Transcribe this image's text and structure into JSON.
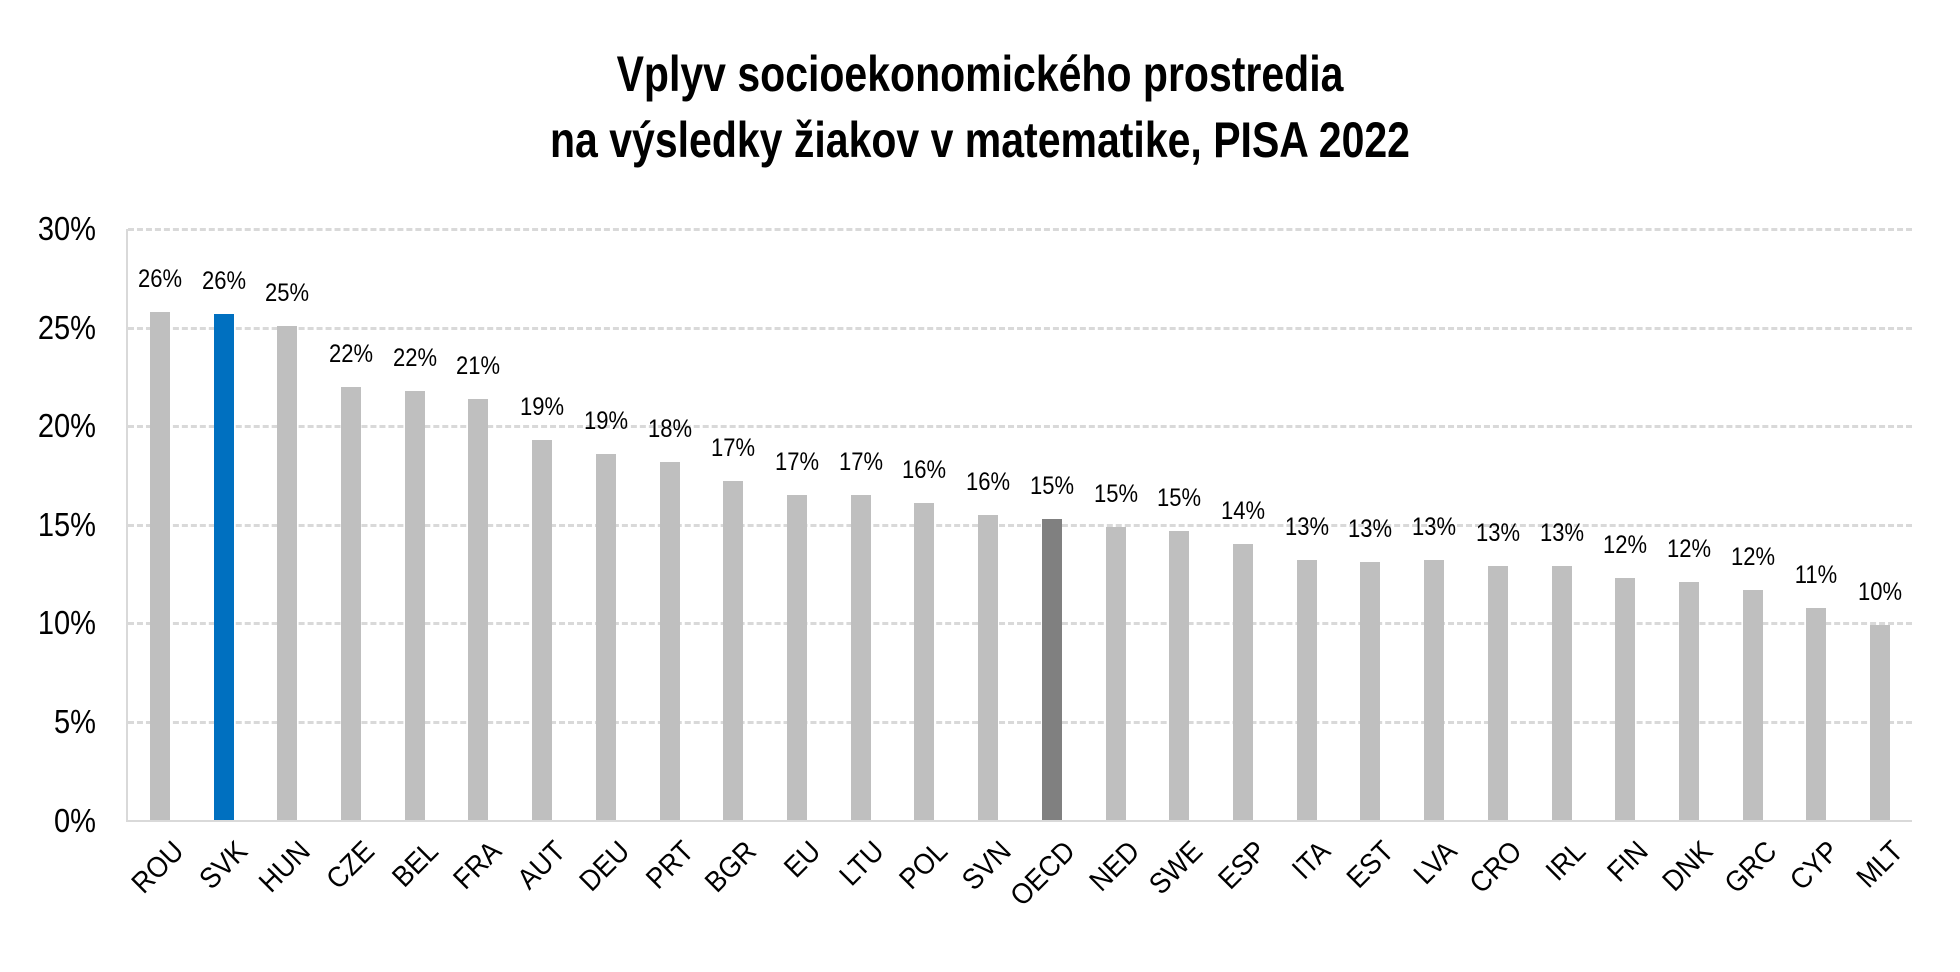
{
  "title": {
    "line1": "Vplyv socioekonomického prostredia",
    "line2": "na výsledky žiakov v matematike, PISA 2022"
  },
  "colors": {
    "default_bar": "#bfbfbf",
    "highlight_svk": "#0070c0",
    "highlight_oecd": "#808080",
    "gridline": "#d9d9d9",
    "axis": "#d9d9d9"
  },
  "y_axis": {
    "ticks": [
      "0%",
      "5%",
      "10%",
      "15%",
      "20%",
      "25%",
      "30%"
    ]
  },
  "chart_data": {
    "type": "bar",
    "title": "Vplyv socioekonomického prostredia na výsledky žiakov v matematike, PISA 2022",
    "xlabel": "",
    "ylabel": "",
    "ylim": [
      0,
      30
    ],
    "y_tick_format": "percent",
    "grid": "horizontal dashed",
    "legend": "none",
    "categories": [
      "ROU",
      "SVK",
      "HUN",
      "CZE",
      "BEL",
      "FRA",
      "AUT",
      "DEU",
      "PRT",
      "BGR",
      "EU",
      "LTU",
      "POL",
      "SVN",
      "OECD",
      "NED",
      "SWE",
      "ESP",
      "ITA",
      "EST",
      "LVA",
      "CRO",
      "IRL",
      "FIN",
      "DNK",
      "GRC",
      "CYP",
      "MLT"
    ],
    "values": [
      25.8,
      25.7,
      25.1,
      22.0,
      21.8,
      21.4,
      19.3,
      18.6,
      18.2,
      17.2,
      16.5,
      16.5,
      16.1,
      15.5,
      15.3,
      14.9,
      14.7,
      14.0,
      13.2,
      13.1,
      13.2,
      12.9,
      12.9,
      12.3,
      12.1,
      11.7,
      10.8,
      9.9
    ],
    "data_labels": [
      "26%",
      "26%",
      "25%",
      "22%",
      "22%",
      "21%",
      "19%",
      "19%",
      "18%",
      "17%",
      "17%",
      "17%",
      "16%",
      "16%",
      "15%",
      "15%",
      "15%",
      "14%",
      "13%",
      "13%",
      "13%",
      "13%",
      "13%",
      "12%",
      "12%",
      "12%",
      "11%",
      "10%"
    ],
    "highlights": {
      "SVK": "#0070c0",
      "OECD": "#808080"
    }
  }
}
